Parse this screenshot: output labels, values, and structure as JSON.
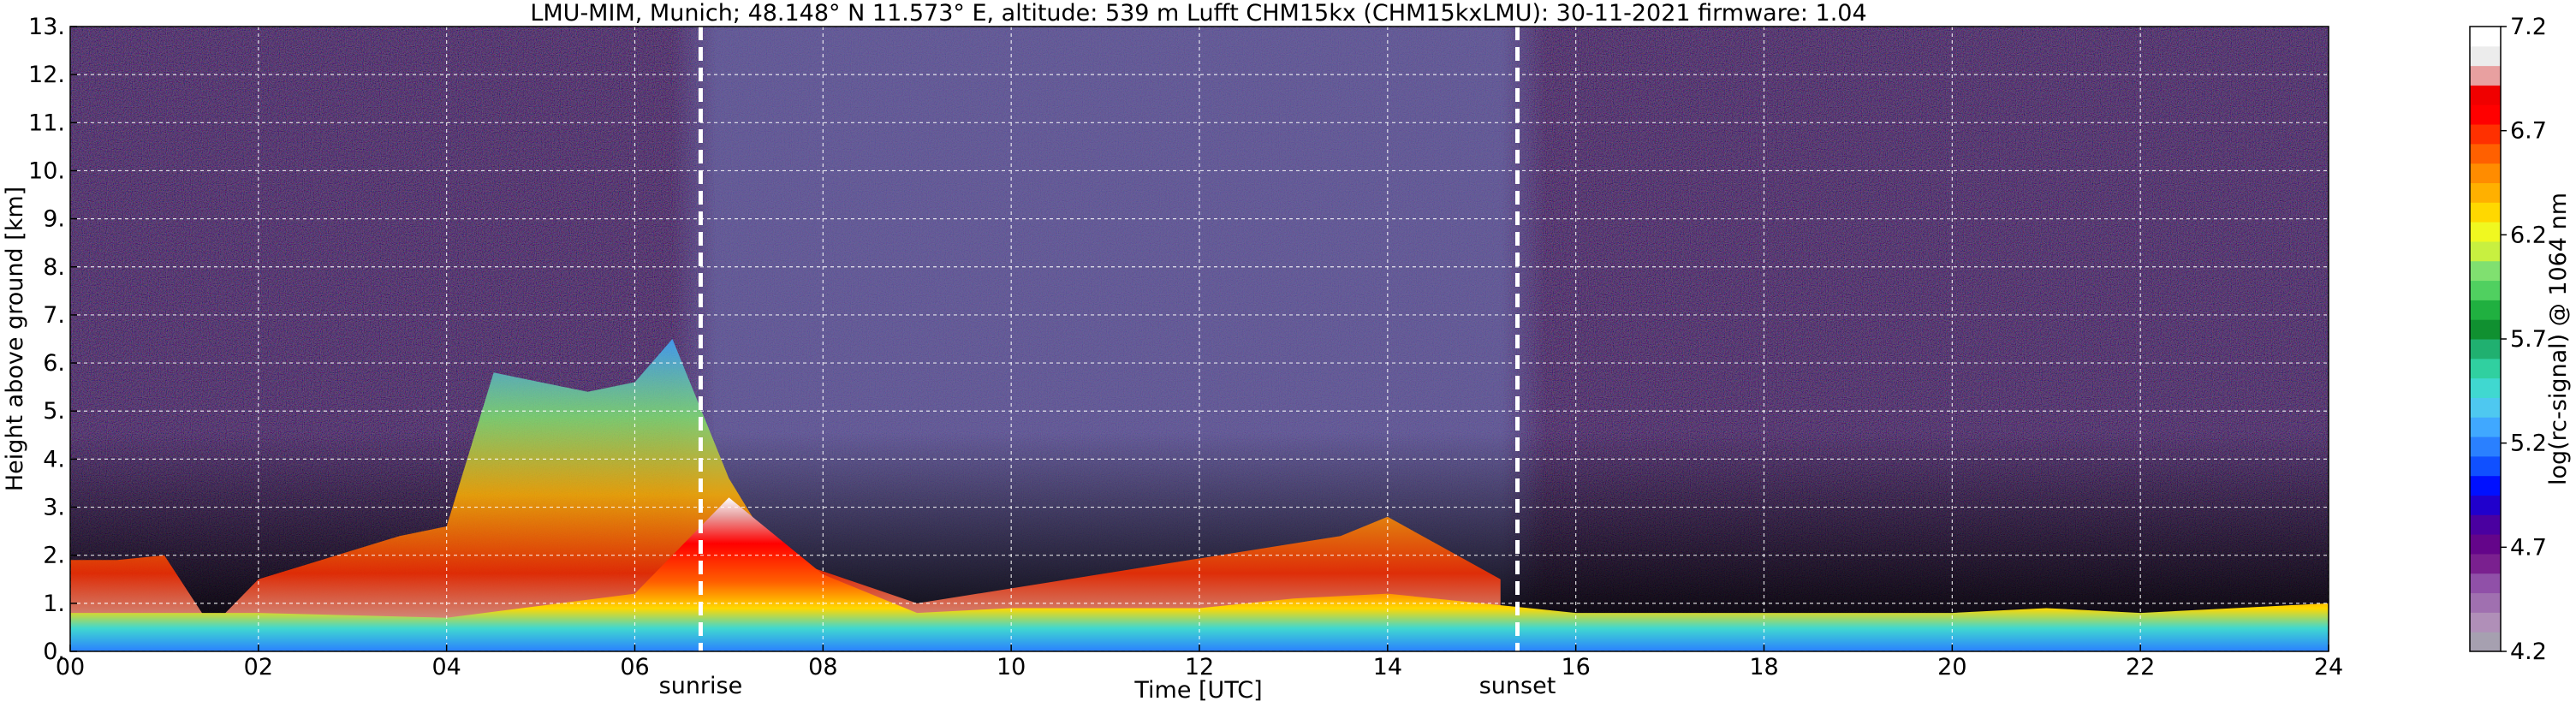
{
  "chart_data": {
    "type": "heatmap",
    "title": "LMU-MIM, Munich; 48.148° N 11.573° E, altitude: 539 m    Lufft CHM15kx (CHM15kxLMU): 30-11-2021    firmware: 1.04",
    "xlabel": "Time [UTC]",
    "ylabel": "Height above ground [km]",
    "xlim": [
      0,
      24
    ],
    "ylim": [
      0,
      13
    ],
    "x_ticks": [
      0,
      2,
      4,
      6,
      8,
      10,
      12,
      14,
      16,
      18,
      20,
      22,
      24
    ],
    "x_tick_labels": [
      "00",
      "02",
      "04",
      "06",
      "08",
      "10",
      "12",
      "14",
      "16",
      "18",
      "20",
      "22",
      "24"
    ],
    "y_ticks": [
      0,
      1,
      2,
      3,
      4,
      5,
      6,
      7,
      8,
      9,
      10,
      11,
      12,
      13
    ],
    "y_tick_labels": [
      "0.",
      "1.",
      "2.",
      "3.",
      "4.",
      "5.",
      "6.",
      "7.",
      "8.",
      "9.",
      "10.",
      "11.",
      "12.",
      "13."
    ],
    "grid": true,
    "annotations": [
      {
        "label": "sunrise",
        "x": 6.7
      },
      {
        "label": "sunset",
        "x": 15.38
      }
    ],
    "colorbar": {
      "label": "log(rc-signal) @ 1064 nm",
      "range": [
        4.2,
        7.2
      ],
      "tick_values": [
        4.2,
        4.7,
        5.2,
        5.7,
        6.2,
        6.7,
        7.2
      ],
      "tick_labels": [
        "4.2",
        "4.7",
        "5.2",
        "5.7",
        "6.2",
        "6.7",
        "7.2"
      ],
      "colors": [
        "#a6a0b0",
        "#b08fb8",
        "#a070b0",
        "#9050a8",
        "#7a208f",
        "#64058a",
        "#4a00a0",
        "#2000cc",
        "#0010ff",
        "#1050ff",
        "#2a80ff",
        "#40a8ff",
        "#4ec8f0",
        "#40d8d0",
        "#30d0a0",
        "#20b070",
        "#109030",
        "#20b040",
        "#50d060",
        "#80e070",
        "#c8f040",
        "#f0f820",
        "#ffd800",
        "#ffb000",
        "#ff8c00",
        "#ff6000",
        "#ff3000",
        "#ff0000",
        "#f00000",
        "#e8a0a0",
        "#ececec",
        "#ffffff"
      ]
    },
    "layers": [
      {
        "name": "boundary layer",
        "t": [
          0,
          2,
          4,
          6,
          7,
          8,
          9,
          10,
          11,
          12,
          13,
          14,
          15,
          16,
          17,
          18,
          19,
          20,
          21,
          22,
          23,
          24
        ],
        "top_km": [
          0.8,
          0.8,
          0.7,
          1.2,
          3.2,
          1.6,
          0.8,
          0.9,
          0.9,
          0.9,
          1.1,
          1.2,
          1.0,
          0.8,
          0.8,
          0.8,
          0.8,
          0.8,
          0.9,
          0.8,
          0.9,
          1.0
        ]
      },
      {
        "name": "cloud",
        "t": [
          0,
          0.5,
          1,
          1.5,
          2,
          3.5,
          4.0,
          4.5,
          5.5,
          6.0,
          6.4,
          7.0,
          7.5,
          9,
          13.5,
          14.0,
          15.2
        ],
        "top_km": [
          1.9,
          1.9,
          2.0,
          0.5,
          1.5,
          2.4,
          2.6,
          5.8,
          5.4,
          5.6,
          6.5,
          3.6,
          2.0,
          1.0,
          2.4,
          2.8,
          1.5
        ]
      }
    ],
    "colors": {
      "daylight_noise": "#6a6aa8",
      "night_noise": "#2a1838",
      "sunline": "#ffffff",
      "grid": "#ffffff"
    }
  }
}
